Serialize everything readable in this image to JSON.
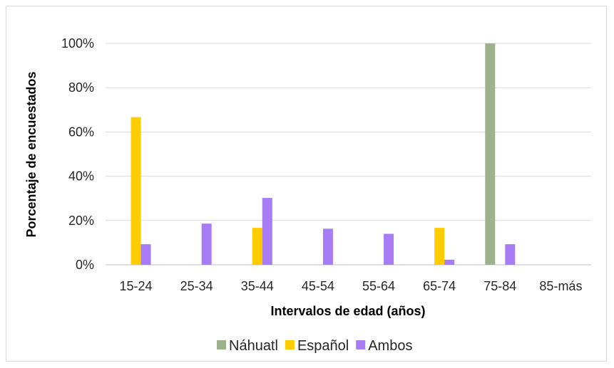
{
  "chart_data": {
    "type": "bar",
    "title": "",
    "xlabel": "Intervalos de edad (años)",
    "ylabel": "Porcentaje de encuestados",
    "categories": [
      "15-24",
      "25-34",
      "35-44",
      "45-54",
      "55-64",
      "65-74",
      "75-84",
      "85-más"
    ],
    "ylim": [
      0,
      100
    ],
    "yticks": [
      "0%",
      "20%",
      "40%",
      "60%",
      "80%",
      "100%"
    ],
    "grid": true,
    "legend_position": "bottom",
    "series": [
      {
        "name": "Náhuatl",
        "color": "#9bb28a",
        "values": [
          0,
          0,
          0,
          0,
          0,
          0,
          100,
          0
        ]
      },
      {
        "name": "Español",
        "color": "#ffcc00",
        "values": [
          66.7,
          0,
          16.7,
          0,
          0,
          16.7,
          0,
          0
        ]
      },
      {
        "name": "Ambos",
        "color": "#a77cf5",
        "values": [
          9.3,
          18.6,
          30.2,
          16.3,
          14,
          2.3,
          9.3,
          0
        ]
      }
    ]
  }
}
